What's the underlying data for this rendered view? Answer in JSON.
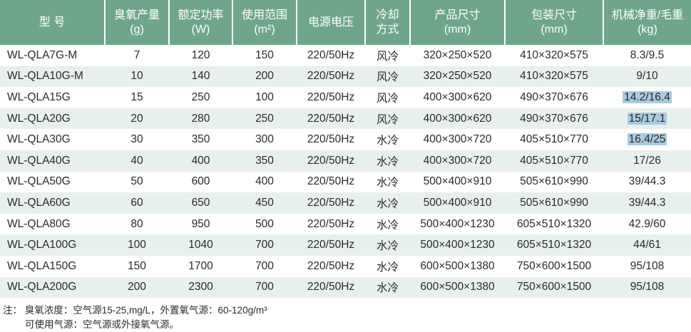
{
  "headers": [
    [
      "型  号",
      ""
    ],
    [
      "臭氧产量",
      "(g)"
    ],
    [
      "额定功率",
      "(W)"
    ],
    [
      "使用范围",
      "(m²)"
    ],
    [
      "电源电压",
      ""
    ],
    [
      "冷却",
      "方式"
    ],
    [
      "产品尺寸",
      "(mm)"
    ],
    [
      "包装尺寸",
      "(mm)"
    ],
    [
      "机械净重/毛重",
      "(kg)"
    ]
  ],
  "rows": [
    [
      "WL-QLA7G-M",
      "7",
      "120",
      "150",
      "220/50Hz",
      "风冷",
      "320×250×520",
      "410×320×575",
      "8.3/9.5"
    ],
    [
      "WL-QLA10G-M",
      "10",
      "140",
      "200",
      "220/50Hz",
      "风冷",
      "320×250×520",
      "410×320×575",
      "9/10"
    ],
    [
      "WL-QLA15G",
      "15",
      "250",
      "100",
      "220/50Hz",
      "风冷",
      "400×300×620",
      "490×370×676",
      "14.2/16.4"
    ],
    [
      "WL-QLA20G",
      "20",
      "280",
      "250",
      "220/50Hz",
      "风冷",
      "400×300×620",
      "490×370×676",
      "15/17.1"
    ],
    [
      "WL-QLA30G",
      "30",
      "350",
      "300",
      "220/50Hz",
      "水冷",
      "400×300×720",
      "405×510×770",
      "16.4/25"
    ],
    [
      "WL-QLA40G",
      "40",
      "400",
      "350",
      "220/50Hz",
      "水冷",
      "400×300×720",
      "405×510×770",
      "17/26"
    ],
    [
      "WL-QLA50G",
      "50",
      "600",
      "400",
      "220/50Hz",
      "水冷",
      "500×400×910",
      "505×610×990",
      "39/44.3"
    ],
    [
      "WL-QLA60G",
      "60",
      "650",
      "450",
      "220/50Hz",
      "水冷",
      "500×400×910",
      "505×610×990",
      "39/44.3"
    ],
    [
      "WL-QLA80G",
      "80",
      "950",
      "500",
      "220/50Hz",
      "水冷",
      "500×400×1230",
      "605×510×1320",
      "42.9/60"
    ],
    [
      "WL-QLA100G",
      "100",
      "1040",
      "700",
      "220/50Hz",
      "水冷",
      "500×400×1230",
      "605×510×1320",
      "44/61"
    ],
    [
      "WL-QLA150G",
      "150",
      "1700",
      "700",
      "220/50Hz",
      "水冷",
      "600×500×1380",
      "750×600×1500",
      "95/108"
    ],
    [
      "WL-QLA200G",
      "200",
      "2300",
      "700",
      "220/50Hz",
      "水冷",
      "600×500×1380",
      "750×600×1500",
      "95/108"
    ]
  ],
  "highlighted_weights": [
    "WL-QLA15G",
    "WL-QLA20G",
    "WL-QLA30G"
  ],
  "note": {
    "line1": "注： 臭氧浓度：空气源15-25,mg/L，外置氧气源：60-120g/m³",
    "line2": "可使用气源：空气源或外接氧气源。"
  },
  "colors": {
    "header": "#6fa68b",
    "stripe": "#e8f0ed",
    "highlight": "#a9cbe0"
  }
}
